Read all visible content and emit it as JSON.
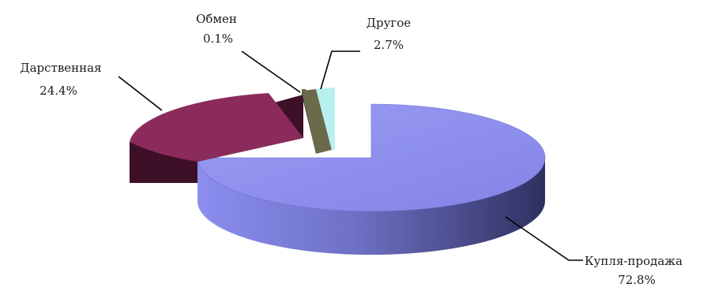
{
  "chart_data": {
    "type": "pie",
    "style": "3d-exploded",
    "title": "",
    "slices": [
      {
        "label": "Купля-продажа",
        "value": 72.8,
        "value_label": "72.8%",
        "color": "#8b8ef0"
      },
      {
        "label": "Дарственная",
        "value": 24.4,
        "value_label": "24.4%",
        "color": "#8b2b5b"
      },
      {
        "label": "Обмен",
        "value": 0.1,
        "value_label": "0.1%",
        "color": "#6b6a4b"
      },
      {
        "label": "Другое",
        "value": 2.7,
        "value_label": "2.7%",
        "color": "#b8f0f0"
      }
    ],
    "legend": "none",
    "data_labels": "outside-with-leader-lines"
  }
}
